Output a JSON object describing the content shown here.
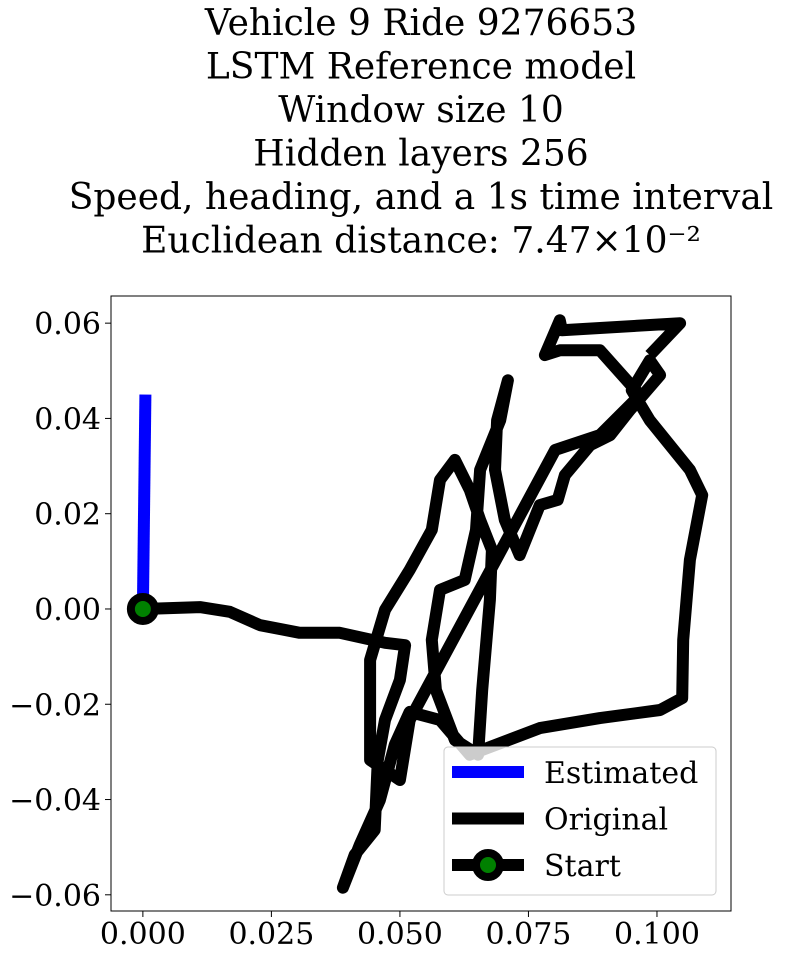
{
  "chart_data": {
    "type": "line",
    "title": [
      "Vehicle 9 Ride 9276653",
      "LSTM Reference model",
      "Window size 10",
      "Hidden layers 256",
      "Speed, heading, and a 1s time interval",
      "Euclidean distance: 7.47×10⁻²"
    ],
    "xlim": [
      -0.0062,
      0.1144
    ],
    "ylim": [
      -0.0634,
      0.0657
    ],
    "xticks": [
      {
        "value": 0,
        "label": "0.000"
      },
      {
        "value": 0.025,
        "label": "0.025"
      },
      {
        "value": 0.05,
        "label": "0.050"
      },
      {
        "value": 0.075,
        "label": "0.075"
      },
      {
        "value": 0.1,
        "label": "0.100"
      }
    ],
    "yticks": [
      {
        "value": -0.06,
        "label": "−0.06"
      },
      {
        "value": -0.04,
        "label": "−0.04"
      },
      {
        "value": -0.02,
        "label": "−0.02"
      },
      {
        "value": 0,
        "label": "0.00"
      },
      {
        "value": 0.02,
        "label": "0.02"
      },
      {
        "value": 0.04,
        "label": "0.04"
      },
      {
        "value": 0.06,
        "label": "0.06"
      }
    ],
    "legend": "lower right",
    "series": [
      {
        "name": "Estimated",
        "color": "#0000ff",
        "x": [
          0,
          0.0005
        ],
        "values": [
          0,
          0.045
        ]
      },
      {
        "name": "Original",
        "color": "#000000",
        "x": [
          0,
          0.0111,
          0.0169,
          0.0228,
          0.0305,
          0.0383,
          0.0471,
          0.051,
          0.05,
          0.0471,
          0.0457,
          0.0451,
          0.0412,
          0.0389,
          0.0422,
          0.0461,
          0.049,
          0.0519,
          0.0578,
          0.0636,
          0.0772,
          0.0889,
          0.1006,
          0.1049,
          0.1051,
          0.1064,
          0.1088,
          0.1064,
          0.0986,
          0.0951,
          0.0986,
          0.1006,
          0.0947,
          0.0909,
          0.087,
          0.0821,
          0.0807,
          0.0772,
          0.0733,
          0.0704,
          0.0685,
          0.0689,
          0.071,
          0.0695,
          0.0656,
          0.0648,
          0.0626,
          0.0578,
          0.0562,
          0.057,
          0.0607,
          0.0652,
          0.066,
          0.0675,
          0.0679,
          0.0656,
          0.0636,
          0.0607,
          0.0578,
          0.0562,
          0.0519,
          0.0471,
          0.0442,
          0.0442,
          0.05,
          0.0519,
          0.0802,
          0.0889,
          0.0967,
          0.0889,
          0.0811,
          0.0782,
          0.0811,
          0.0815,
          0.1045,
          0.0986
        ],
        "values": [
          0,
          0.0004,
          -0.0006,
          -0.0034,
          -0.005,
          -0.005,
          -0.0071,
          -0.0076,
          -0.0149,
          -0.0233,
          -0.0317,
          -0.0464,
          -0.0516,
          -0.0585,
          -0.0495,
          -0.0401,
          -0.0285,
          -0.0216,
          -0.0233,
          -0.0306,
          -0.025,
          -0.0229,
          -0.0212,
          -0.0187,
          -0.0065,
          0.0103,
          0.0239,
          0.0292,
          0.0396,
          0.0459,
          0.0522,
          0.0491,
          0.0417,
          0.0365,
          0.0344,
          0.0281,
          0.0229,
          0.0218,
          0.0113,
          0.0187,
          0.0292,
          0.0396,
          0.048,
          0.0396,
          0.0292,
          0.0166,
          0.0061,
          0.004,
          -0.0065,
          -0.017,
          -0.0275,
          -0.0306,
          -0.017,
          0.0019,
          0.0124,
          0.0187,
          0.025,
          0.0313,
          0.0271,
          0.0166,
          0.0082,
          -0.0002,
          -0.0107,
          -0.0317,
          -0.0359,
          -0.0233,
          0.0334,
          0.0365,
          0.0449,
          0.0543,
          0.0543,
          0.0533,
          0.0606,
          0.0585,
          0.06,
          0.0533
        ]
      },
      {
        "name": "Start",
        "color": "#000000",
        "marker_color": "#008000",
        "x": [
          0
        ],
        "values": [
          0
        ]
      }
    ]
  }
}
